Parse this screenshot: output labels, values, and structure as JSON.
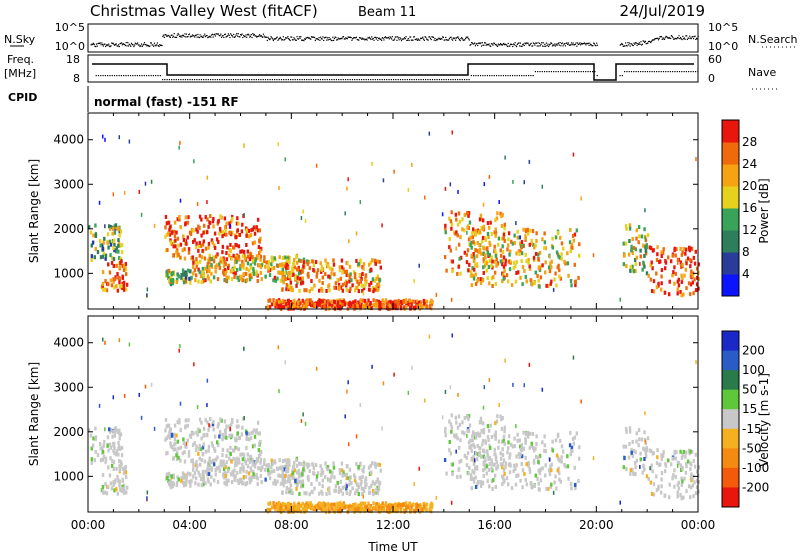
{
  "header": {
    "station": "Christmas Valley West (fitACF)",
    "beam": "Beam 11",
    "date": "24/Jul/2019"
  },
  "mode_label": "normal (fast) -151 RF",
  "strips": {
    "nsky": {
      "label": "N.Sky",
      "left_ticks": [
        "10^5",
        "10^0"
      ],
      "right_ticks": [
        "10^5",
        "10^0"
      ],
      "right_label": "N.Search"
    },
    "freq": {
      "label_top": "Freq.",
      "label_unit": "[MHz]",
      "left_ticks": [
        "18",
        "8"
      ],
      "right_ticks": [
        "60",
        "0"
      ],
      "right_label": "Nave"
    },
    "cpid_label": "CPID"
  },
  "chart_data": [
    {
      "type": "heatmap",
      "panel": "power",
      "ylabel": "Slant Range [km]",
      "ylim": [
        200,
        4600
      ],
      "yticks": [
        1000,
        2000,
        3000,
        4000
      ],
      "xlim_hours": [
        0,
        24
      ],
      "colorbar": {
        "label": "Power [dB]",
        "ticks": [
          "4",
          "8",
          "12",
          "16",
          "20",
          "24",
          "28"
        ],
        "colors": [
          "#0a14ff",
          "#2a3c9a",
          "#2e7d5b",
          "#3aa35a",
          "#e6d21e",
          "#f5a312",
          "#f06a0c",
          "#e8160c"
        ]
      },
      "echo_regions": [
        {
          "t": [
            0.0,
            1.3
          ],
          "range_km": [
            1300,
            2100
          ],
          "level": 0.45
        },
        {
          "t": [
            0.5,
            1.5
          ],
          "range_km": [
            600,
            1300
          ],
          "level": 0.8
        },
        {
          "t": [
            3.0,
            6.8
          ],
          "range_km": [
            1300,
            2300
          ],
          "level": 0.85
        },
        {
          "t": [
            3.0,
            4.0
          ],
          "range_km": [
            750,
            1100
          ],
          "level": 0.5
        },
        {
          "t": [
            4.0,
            8.5
          ],
          "range_km": [
            800,
            1400
          ],
          "level": 0.65
        },
        {
          "t": [
            7.5,
            11.5
          ],
          "range_km": [
            600,
            1300
          ],
          "level": 0.75
        },
        {
          "t": [
            14.0,
            16.5
          ],
          "range_km": [
            900,
            2400
          ],
          "level": 0.75
        },
        {
          "t": [
            15.0,
            19.3
          ],
          "range_km": [
            700,
            2000
          ],
          "level": 0.65
        },
        {
          "t": [
            21.0,
            22.0
          ],
          "range_km": [
            1000,
            2100
          ],
          "level": 0.55
        },
        {
          "t": [
            22.0,
            24.0
          ],
          "range_km": [
            500,
            1600
          ],
          "level": 0.9
        },
        {
          "t": [
            7.0,
            13.5
          ],
          "range_km": [
            200,
            400
          ],
          "level": 0.9
        }
      ]
    },
    {
      "type": "heatmap",
      "panel": "velocity",
      "ylabel": "Slant Range [km]",
      "xlabel": "Time UT",
      "ylim": [
        200,
        4600
      ],
      "yticks": [
        1000,
        2000,
        3000,
        4000
      ],
      "xlim_hours": [
        0,
        24
      ],
      "xticks": [
        "00:00",
        "04:00",
        "08:00",
        "12:00",
        "16:00",
        "20:00",
        "00:00"
      ],
      "colorbar": {
        "label": "Velocity [m s-1]",
        "ticks": [
          "200",
          "100",
          "50",
          "15",
          "-15",
          "-50",
          "-100",
          "-200"
        ],
        "colors": [
          "#1a28c8",
          "#2a5cc8",
          "#2a7a4a",
          "#5ec83a",
          "#c8c8c8",
          "#f5b020",
          "#f58a10",
          "#f55a0a",
          "#e8160c"
        ]
      }
    }
  ]
}
